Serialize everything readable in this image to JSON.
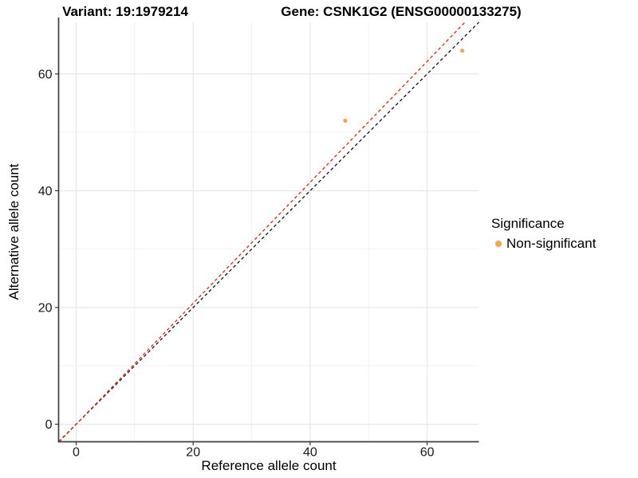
{
  "titles": {
    "variant": "Variant: 19:1979214",
    "gene": "Gene: CSNK1G2 (ENSG00000133275)"
  },
  "legend": {
    "title": "Significance",
    "items": [
      {
        "label": "Non-significant",
        "color": "#F5A54C"
      }
    ]
  },
  "chart_data": {
    "type": "scatter",
    "title": "Variant: 19:1979214  Gene: CSNK1G2 (ENSG00000133275)",
    "xlabel": "Reference allele count",
    "ylabel": "Alternative allele count",
    "xlim": [
      -3.0,
      68.85
    ],
    "ylim": [
      -3.0,
      68.85
    ],
    "x_ticks": [
      0,
      20,
      40,
      60
    ],
    "y_ticks": [
      0,
      20,
      40,
      60
    ],
    "x_minor_ticks": [
      10,
      30,
      50
    ],
    "y_minor_ticks": [
      10,
      30,
      50
    ],
    "grid": true,
    "legend_position": "right",
    "series": [
      {
        "name": "Non-significant",
        "color": "#F5A54C",
        "points": [
          {
            "x": 46,
            "y": 52
          },
          {
            "x": 66,
            "y": 64
          }
        ]
      }
    ],
    "lines": [
      {
        "name": "identity-line",
        "slope": 1.0,
        "intercept": 0,
        "color": "#1C1C1C",
        "style": "dashed"
      },
      {
        "name": "fitted-line",
        "slope": 1.036,
        "intercept": 0,
        "color": "#E62B1E",
        "style": "dashed"
      }
    ],
    "colors": {
      "grid_major": "#E6E6E6",
      "grid_minor": "#F2F2F2",
      "axis_line": "#3E3E3E",
      "tick": "#333333",
      "tick_label": "#1A1A1A"
    }
  }
}
